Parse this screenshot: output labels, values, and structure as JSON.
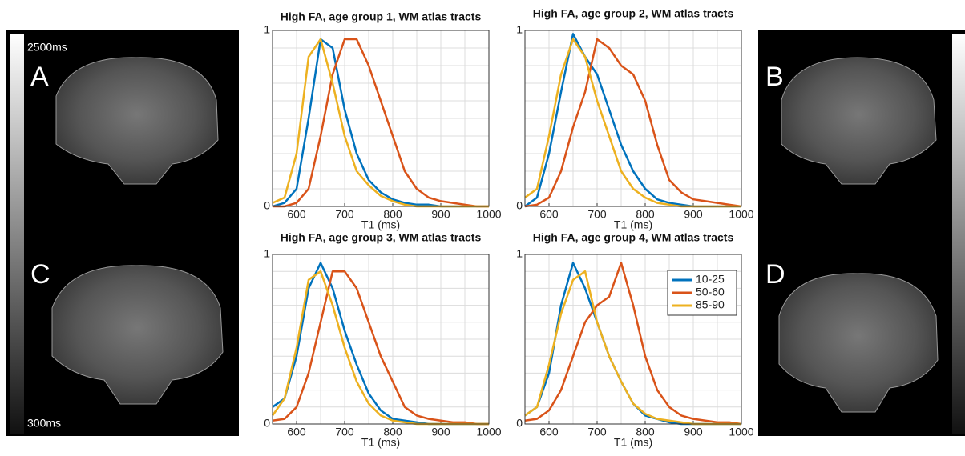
{
  "images": {
    "labels": [
      "A",
      "B",
      "C",
      "D"
    ],
    "colorbar_max": "2500ms",
    "colorbar_min": "300ms"
  },
  "chart_data": [
    {
      "type": "line",
      "title": "High FA, age group 1, WM atlas tracts",
      "xlabel": "T1 (ms)",
      "x": [
        550,
        575,
        600,
        625,
        650,
        675,
        700,
        725,
        750,
        775,
        800,
        825,
        850,
        875,
        900,
        925,
        950,
        975,
        1000
      ],
      "series": [
        {
          "color": "#0072bd",
          "values": [
            0,
            0.02,
            0.1,
            0.5,
            0.95,
            0.9,
            0.55,
            0.3,
            0.15,
            0.08,
            0.04,
            0.02,
            0.01,
            0.01,
            0,
            0,
            0,
            0,
            0
          ]
        },
        {
          "color": "#d95319",
          "values": [
            0,
            0,
            0.02,
            0.1,
            0.4,
            0.75,
            0.95,
            0.95,
            0.8,
            0.6,
            0.4,
            0.2,
            0.1,
            0.05,
            0.03,
            0.02,
            0.01,
            0,
            0
          ]
        },
        {
          "color": "#edb120",
          "values": [
            0.02,
            0.05,
            0.3,
            0.85,
            0.95,
            0.7,
            0.4,
            0.2,
            0.12,
            0.06,
            0.03,
            0.01,
            0,
            0,
            0,
            0,
            0,
            0,
            0
          ]
        }
      ],
      "xlim": [
        550,
        1000
      ],
      "xticks": [
        600,
        700,
        800,
        900,
        1000
      ],
      "ylim": [
        0,
        1
      ],
      "yticks": [
        0,
        1
      ],
      "minor_xticks": [
        600,
        650,
        700,
        750,
        800,
        850,
        900,
        950
      ],
      "minor_yticks": [
        0.1,
        0.2,
        0.3,
        0.4,
        0.5,
        0.6,
        0.7,
        0.8,
        0.9
      ],
      "grid": true,
      "legend": false
    },
    {
      "type": "line",
      "title": "High FA, age group 2, WM atlas tracts",
      "xlabel": "T1 (ms)",
      "x": [
        550,
        575,
        600,
        625,
        650,
        675,
        700,
        725,
        750,
        775,
        800,
        825,
        850,
        875,
        900,
        925,
        950,
        975,
        1000
      ],
      "series": [
        {
          "color": "#0072bd",
          "values": [
            0,
            0.05,
            0.3,
            0.65,
            0.98,
            0.85,
            0.75,
            0.55,
            0.35,
            0.2,
            0.1,
            0.04,
            0.02,
            0.01,
            0,
            0,
            0,
            0,
            0
          ]
        },
        {
          "color": "#d95319",
          "values": [
            0,
            0.01,
            0.05,
            0.2,
            0.45,
            0.65,
            0.95,
            0.9,
            0.8,
            0.75,
            0.6,
            0.35,
            0.15,
            0.08,
            0.04,
            0.03,
            0.02,
            0.01,
            0
          ]
        },
        {
          "color": "#edb120",
          "values": [
            0.05,
            0.1,
            0.4,
            0.75,
            0.95,
            0.85,
            0.6,
            0.4,
            0.2,
            0.1,
            0.05,
            0.02,
            0.01,
            0,
            0,
            0,
            0,
            0,
            0
          ]
        }
      ],
      "xlim": [
        550,
        1000
      ],
      "xticks": [
        600,
        700,
        800,
        900,
        1000
      ],
      "ylim": [
        0,
        1
      ],
      "yticks": [
        0,
        1
      ],
      "minor_xticks": [
        600,
        650,
        700,
        750,
        800,
        850,
        900,
        950
      ],
      "minor_yticks": [
        0.1,
        0.2,
        0.3,
        0.4,
        0.5,
        0.6,
        0.7,
        0.8,
        0.9
      ],
      "grid": true,
      "legend": false
    },
    {
      "type": "line",
      "title": "High FA, age group 3, WM atlas tracts",
      "xlabel": "T1 (ms)",
      "x": [
        550,
        575,
        600,
        625,
        650,
        675,
        700,
        725,
        750,
        775,
        800,
        825,
        850,
        875,
        900,
        925,
        950,
        975,
        1000
      ],
      "series": [
        {
          "color": "#0072bd",
          "values": [
            0.1,
            0.15,
            0.4,
            0.8,
            0.95,
            0.8,
            0.55,
            0.35,
            0.18,
            0.08,
            0.03,
            0.02,
            0.01,
            0,
            0,
            0,
            0,
            0,
            0
          ]
        },
        {
          "color": "#d95319",
          "values": [
            0.02,
            0.03,
            0.1,
            0.3,
            0.6,
            0.9,
            0.9,
            0.8,
            0.6,
            0.4,
            0.25,
            0.1,
            0.05,
            0.03,
            0.02,
            0.01,
            0.01,
            0,
            0
          ]
        },
        {
          "color": "#edb120",
          "values": [
            0.05,
            0.15,
            0.45,
            0.85,
            0.9,
            0.7,
            0.45,
            0.25,
            0.12,
            0.05,
            0.02,
            0.01,
            0,
            0,
            0,
            0,
            0,
            0,
            0
          ]
        }
      ],
      "xlim": [
        550,
        1000
      ],
      "xticks": [
        600,
        700,
        800,
        900,
        1000
      ],
      "ylim": [
        0,
        1
      ],
      "yticks": [
        0,
        1
      ],
      "minor_xticks": [
        600,
        650,
        700,
        750,
        800,
        850,
        900,
        950
      ],
      "minor_yticks": [
        0.1,
        0.2,
        0.3,
        0.4,
        0.5,
        0.6,
        0.7,
        0.8,
        0.9
      ],
      "grid": true,
      "legend": false
    },
    {
      "type": "line",
      "title": "High FA, age group 4, WM atlas tracts",
      "xlabel": "T1 (ms)",
      "x": [
        550,
        575,
        600,
        625,
        650,
        675,
        700,
        725,
        750,
        775,
        800,
        825,
        850,
        875,
        900,
        925,
        950,
        975,
        1000
      ],
      "series": [
        {
          "name": "10-25",
          "color": "#0072bd",
          "values": [
            0.05,
            0.1,
            0.3,
            0.7,
            0.95,
            0.8,
            0.6,
            0.4,
            0.25,
            0.12,
            0.05,
            0.03,
            0.01,
            0,
            0,
            0,
            0,
            0,
            0
          ]
        },
        {
          "name": "50-60",
          "color": "#d95319",
          "values": [
            0.02,
            0.03,
            0.08,
            0.2,
            0.4,
            0.6,
            0.7,
            0.75,
            0.95,
            0.7,
            0.4,
            0.2,
            0.1,
            0.05,
            0.03,
            0.02,
            0.01,
            0.01,
            0
          ]
        },
        {
          "name": "85-90",
          "color": "#edb120",
          "values": [
            0.05,
            0.1,
            0.35,
            0.65,
            0.85,
            0.9,
            0.6,
            0.4,
            0.25,
            0.12,
            0.06,
            0.03,
            0.02,
            0.01,
            0,
            0,
            0,
            0,
            0
          ]
        }
      ],
      "xlim": [
        550,
        1000
      ],
      "xticks": [
        600,
        700,
        800,
        900,
        1000
      ],
      "ylim": [
        0,
        1
      ],
      "yticks": [
        0,
        1
      ],
      "minor_xticks": [
        600,
        650,
        700,
        750,
        800,
        850,
        900,
        950
      ],
      "minor_yticks": [
        0.1,
        0.2,
        0.3,
        0.4,
        0.5,
        0.6,
        0.7,
        0.8,
        0.9
      ],
      "grid": true,
      "legend": "upper right"
    }
  ]
}
